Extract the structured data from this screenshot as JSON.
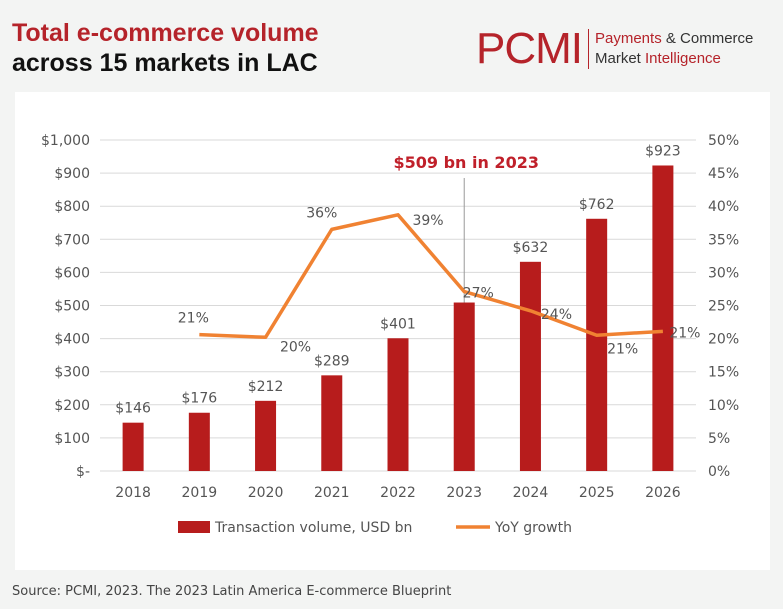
{
  "header": {
    "title_line1": "Total e-commerce volume",
    "title_line2": "across 15 markets in LAC"
  },
  "logo": {
    "mark": "PCMI",
    "line1_a": "Payments",
    "line1_b": "& Commerce",
    "line2_a": "Market",
    "line2_b": "Intelligence"
  },
  "source": "Source: PCMI, 2023. The 2023 Latin America E-commerce Blueprint",
  "chart_data": {
    "type": "bar+line",
    "categories": [
      "2018",
      "2019",
      "2020",
      "2021",
      "2022",
      "2023",
      "2024",
      "2025",
      "2026"
    ],
    "series": [
      {
        "name": "Transaction volume, USD bn",
        "type": "bar",
        "axis": "left",
        "color": "#b71c1c",
        "values": [
          146,
          176,
          212,
          289,
          401,
          509,
          632,
          762,
          923
        ],
        "labels": [
          "$146",
          "$176",
          "$212",
          "$289",
          "$401",
          "",
          "$632",
          "$762",
          "$923"
        ]
      },
      {
        "name": "YoY growth",
        "type": "line",
        "axis": "right",
        "color": "#f08232",
        "values": [
          null,
          20.6,
          20.2,
          36.5,
          38.7,
          27.1,
          24.2,
          20.5,
          21.1
        ],
        "labels": [
          "",
          "21%",
          "20%",
          "36%",
          "39%",
          "27%",
          "24%",
          "21%",
          "21%"
        ]
      }
    ],
    "left_axis": {
      "range": [
        0,
        1000
      ],
      "ticks": [
        "$-",
        "$100",
        "$200",
        "$300",
        "$400",
        "$500",
        "$600",
        "$700",
        "$800",
        "$900",
        "$1,000"
      ]
    },
    "right_axis": {
      "range": [
        0,
        50
      ],
      "ticks": [
        "0%",
        "5%",
        "10%",
        "15%",
        "20%",
        "25%",
        "30%",
        "35%",
        "40%",
        "45%",
        "50%"
      ]
    },
    "annotation": {
      "text": "$509 bn in 2023",
      "category": "2023",
      "color": "#c0202a"
    },
    "grid": true,
    "legend": "bottom"
  }
}
